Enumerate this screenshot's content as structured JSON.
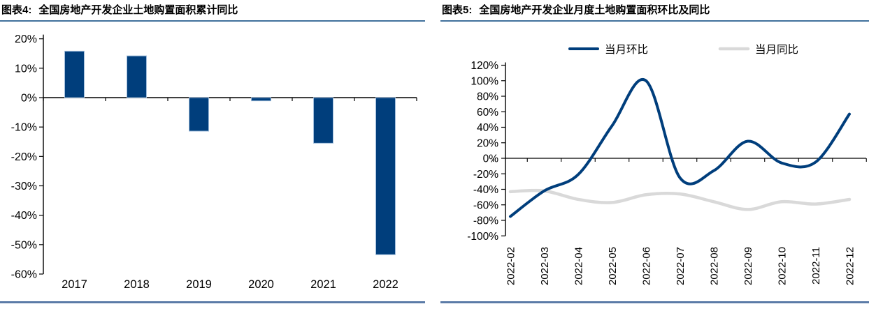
{
  "page": {
    "background": "#ffffff"
  },
  "colors": {
    "navy": "#003e7c",
    "gray_line": "#d9d9d9",
    "bar_border": "#9fbcdb",
    "axis": "#000000",
    "title_underline": "#41719c",
    "panel_bottom_border": "#5b7ba7"
  },
  "left_panel": {
    "title_prefix": "图表4:",
    "title": "全国房地产开发企业土地购置面积累计同比"
  },
  "right_panel": {
    "title_prefix": "图表5:",
    "title": "全国房地产开发企业月度土地购置面积环比及同比"
  },
  "chart_data": [
    {
      "type": "bar",
      "title": "全国房地产开发企业土地购置面积累计同比",
      "categories": [
        "2017",
        "2018",
        "2019",
        "2020",
        "2021",
        "2022"
      ],
      "values": [
        15.8,
        14.2,
        -11.4,
        -1.1,
        -15.5,
        -53.4
      ],
      "unit": "%",
      "xlabel": "",
      "ylabel": "",
      "ylim": [
        -60,
        20
      ],
      "ytick_step": 10,
      "ytick_labels": [
        "20%",
        "10%",
        "0%",
        "-10%",
        "-20%",
        "-30%",
        "-40%",
        "-50%",
        "-60%"
      ],
      "grid": false,
      "bar_color": "#003e7c"
    },
    {
      "type": "line",
      "title": "全国房地产开发企业月度土地购置面积环比及同比",
      "categories": [
        "2022-02",
        "2022-03",
        "2022-04",
        "2022-05",
        "2022-06",
        "2022-07",
        "2022-08",
        "2022-09",
        "2022-10",
        "2022-11",
        "2022-12"
      ],
      "series": [
        {
          "name": "当月环比",
          "color": "#003e7c",
          "width": 4,
          "values": [
            -75,
            -42,
            -21,
            42,
            100,
            -25,
            -16,
            22,
            -6,
            -5,
            57
          ]
        },
        {
          "name": "当月同比",
          "color": "#d9d9d9",
          "width": 4.5,
          "values": [
            -43,
            -42,
            -53,
            -57,
            -47,
            -46,
            -56,
            -66,
            -56,
            -59,
            -53
          ]
        }
      ],
      "unit": "%",
      "ylim": [
        -100,
        120
      ],
      "ytick_step": 20,
      "ytick_labels": [
        "120%",
        "100%",
        "80%",
        "60%",
        "40%",
        "20%",
        "0%",
        "-20%",
        "-40%",
        "-60%",
        "-80%",
        "-100%"
      ],
      "grid": false,
      "smooth": true,
      "legend_position": "top-center",
      "x_labels_rotated_deg": -90
    }
  ]
}
